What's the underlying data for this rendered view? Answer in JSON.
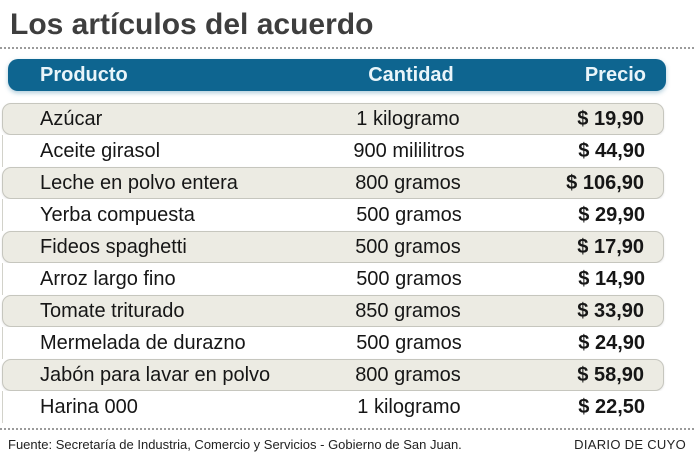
{
  "chart_data": {
    "type": "table",
    "title": "Los artículos del acuerdo",
    "columns": [
      "Producto",
      "Cantidad",
      "Precio"
    ],
    "rows": [
      {
        "product": "Azúcar",
        "quantity": "1 kilogramo",
        "price": "$ 19,90"
      },
      {
        "product": "Aceite girasol",
        "quantity": "900 mililitros",
        "price": "$ 44,90"
      },
      {
        "product": "Leche en polvo entera",
        "quantity": "800 gramos",
        "price": "$ 106,90"
      },
      {
        "product": "Yerba compuesta",
        "quantity": "500 gramos",
        "price": "$ 29,90"
      },
      {
        "product": "Fideos spaghetti",
        "quantity": "500 gramos",
        "price": "$ 17,90"
      },
      {
        "product": "Arroz largo fino",
        "quantity": "500 gramos",
        "price": "$ 14,90"
      },
      {
        "product": "Tomate triturado",
        "quantity": "850 gramos",
        "price": "$ 33,90"
      },
      {
        "product": "Mermelada de durazno",
        "quantity": "500 gramos",
        "price": "$ 24,90"
      },
      {
        "product": "Jabón para lavar en polvo",
        "quantity": "800 gramos",
        "price": "$ 58,90"
      },
      {
        "product": "Harina 000",
        "quantity": "1 kilogramo",
        "price": "$ 22,50"
      }
    ],
    "source": "Fuente: Secretaría de Industria, Comercio y Servicios - Gobierno de San Juan.",
    "credit": "DIARIO DE CUYO"
  },
  "colors": {
    "header_bg": "#0e6590",
    "header_text": "#e9f5fa",
    "row_shaded_bg": "#ecebe3",
    "row_border": "#c6c6be",
    "title_text": "#3e3e3e",
    "body_text": "#161616"
  }
}
